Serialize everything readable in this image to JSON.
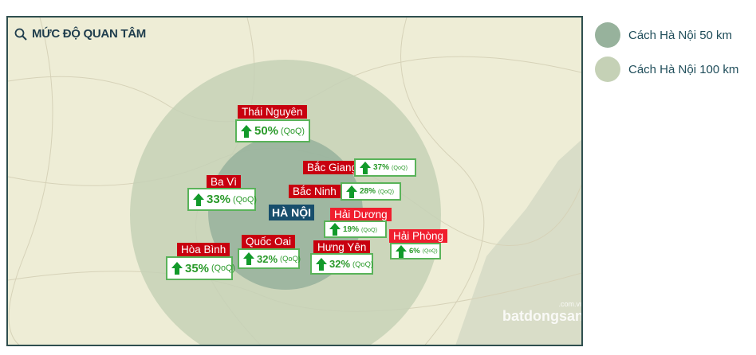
{
  "title": "MỨC ĐỘ QUAN TÂM",
  "legend": [
    {
      "label": "Cách Hà Nội 50 km",
      "color": "#97b29c"
    },
    {
      "label": "Cách Hà Nội 100 km",
      "color": "#c5d1b6"
    }
  ],
  "center": "HÀ NỘI",
  "places": [
    {
      "name": "Thái Nguyên",
      "value": "50%",
      "unit": "(QoQ)"
    },
    {
      "name": "Bắc Giang",
      "value": "37%",
      "unit": "(QoQ)"
    },
    {
      "name": "Bắc Ninh",
      "value": "28%",
      "unit": "(QoQ)"
    },
    {
      "name": "Ba Vì",
      "value": "33%",
      "unit": "(QoQ)"
    },
    {
      "name": "Hải Dương",
      "value": "19%",
      "unit": "(QoQ)"
    },
    {
      "name": "Hải Phòng",
      "value": "6%",
      "unit": "(QoQ)"
    },
    {
      "name": "Hòa Bình",
      "value": "35%",
      "unit": "(QoQ)"
    },
    {
      "name": "Quốc Oai",
      "value": "32%",
      "unit": "(QoQ)"
    },
    {
      "name": "Hưng Yên",
      "value": "32%",
      "unit": "(QoQ)"
    }
  ],
  "logo": {
    "brand": "batdongsan",
    "domain": ".com.vn"
  }
}
